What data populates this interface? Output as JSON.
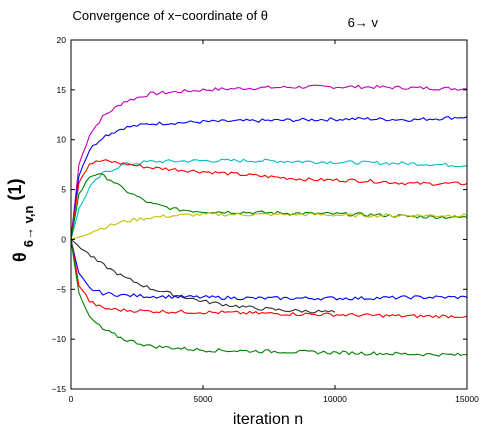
{
  "chart_data": {
    "type": "line",
    "title": "Convergence of x−coordinate of θ",
    "title_subscript": "6→ v",
    "xlabel": "iteration n",
    "ylabel_main": "θ",
    "ylabel_sub": "6→ v,n",
    "ylabel_sup": "(1)",
    "xlim": [
      0,
      15000
    ],
    "ylim": [
      -15,
      20
    ],
    "xticks": [
      0,
      5000,
      10000,
      15000
    ],
    "xtick_labels": [
      "0",
      "5000",
      "10000",
      "15000"
    ],
    "yticks": [
      -15,
      -10,
      -5,
      0,
      5,
      10,
      15,
      20
    ],
    "ytick_labels": [
      "−15",
      "−10",
      "−5",
      "0",
      "5",
      "10",
      "15",
      "20"
    ],
    "grid": false,
    "series": [
      {
        "color": "#bf00bf",
        "x": [
          0,
          300,
          700,
          1200,
          2000,
          3000,
          5000,
          7000,
          9000,
          11000,
          13000,
          15000
        ],
        "y": [
          0,
          7.5,
          10.5,
          12.3,
          13.8,
          14.6,
          15.0,
          15.2,
          15.3,
          15.3,
          15.2,
          15.1
        ]
      },
      {
        "color": "#0000ff",
        "x": [
          0,
          300,
          700,
          1200,
          2000,
          3000,
          5000,
          7000,
          9000,
          11000,
          13000,
          15000
        ],
        "y": [
          0,
          6.5,
          9.0,
          10.3,
          11.2,
          11.6,
          11.8,
          11.9,
          12.0,
          12.1,
          12.0,
          12.3
        ]
      },
      {
        "color": "#00bfbf",
        "x": [
          0,
          300,
          700,
          1200,
          2000,
          3000,
          5000,
          7000,
          9000,
          11000,
          13000,
          15000
        ],
        "y": [
          0,
          3.0,
          5.2,
          6.6,
          7.5,
          7.8,
          7.9,
          7.9,
          7.8,
          7.7,
          7.6,
          7.4
        ]
      },
      {
        "color": "#ff0000",
        "x": [
          0,
          300,
          700,
          1200,
          2000,
          3000,
          5000,
          7000,
          9000,
          11000,
          13000,
          15000
        ],
        "y": [
          0,
          5.8,
          7.6,
          7.9,
          7.6,
          7.2,
          6.8,
          6.4,
          6.0,
          5.9,
          5.6,
          5.6
        ]
      },
      {
        "color": "#008000",
        "x": [
          0,
          300,
          700,
          1000,
          1500,
          2000,
          3000,
          4000,
          5000,
          7000,
          9000,
          11000,
          13000,
          15000
        ],
        "y": [
          0,
          4.5,
          6.3,
          6.6,
          6.0,
          5.0,
          3.6,
          3.0,
          2.8,
          2.7,
          2.6,
          2.5,
          2.3,
          2.2
        ]
      },
      {
        "color": "#bfbf00",
        "x": [
          0,
          1000,
          2000,
          3000,
          4000,
          5000,
          7000,
          9000,
          11000,
          13000,
          15000
        ],
        "y": [
          0,
          1.0,
          1.8,
          2.2,
          2.4,
          2.5,
          2.5,
          2.5,
          2.4,
          2.4,
          2.4
        ]
      },
      {
        "color": "#303030",
        "x": [
          0,
          1000,
          2000,
          3000,
          4000,
          5000,
          6000,
          7000,
          8000,
          9000,
          10000
        ],
        "y": [
          0,
          -2.2,
          -3.8,
          -4.9,
          -5.6,
          -6.2,
          -6.6,
          -6.9,
          -7.1,
          -7.2,
          -7.3
        ]
      },
      {
        "color": "#0000ff",
        "x": [
          0,
          300,
          700,
          1200,
          2000,
          3000,
          5000,
          7000,
          9000,
          11000,
          13000,
          15000
        ],
        "y": [
          0,
          -3.5,
          -4.9,
          -5.4,
          -5.6,
          -5.7,
          -5.8,
          -5.9,
          -5.9,
          -5.9,
          -5.8,
          -5.8
        ]
      },
      {
        "color": "#ff0000",
        "x": [
          0,
          300,
          700,
          1200,
          2000,
          3000,
          5000,
          7000,
          9000,
          11000,
          13000,
          15000
        ],
        "y": [
          0,
          -4.5,
          -6.2,
          -6.9,
          -7.1,
          -7.2,
          -7.3,
          -7.4,
          -7.5,
          -7.6,
          -7.7,
          -7.7
        ]
      },
      {
        "color": "#008000",
        "x": [
          0,
          300,
          700,
          1200,
          2000,
          3000,
          5000,
          7000,
          9000,
          11000,
          13000,
          15000
        ],
        "y": [
          0,
          -5.5,
          -7.8,
          -9.0,
          -10.0,
          -10.7,
          -11.1,
          -11.2,
          -11.3,
          -11.4,
          -11.5,
          -11.6
        ]
      }
    ]
  }
}
